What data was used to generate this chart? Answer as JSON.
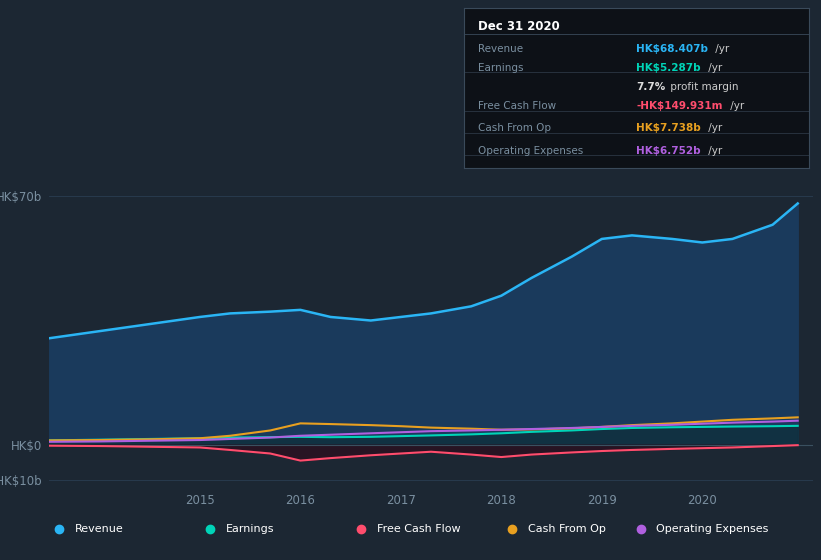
{
  "background_color": "#1c2733",
  "plot_bg_color": "#1c2733",
  "years": [
    2013.5,
    2014.0,
    2014.5,
    2015.0,
    2015.3,
    2015.7,
    2016.0,
    2016.3,
    2016.7,
    2017.0,
    2017.3,
    2017.7,
    2018.0,
    2018.3,
    2018.7,
    2019.0,
    2019.3,
    2019.7,
    2020.0,
    2020.3,
    2020.7,
    2020.95
  ],
  "revenue": [
    30,
    32,
    34,
    36,
    37,
    37.5,
    38,
    36,
    35,
    36,
    37,
    39,
    42,
    47,
    53,
    58,
    59,
    58,
    57,
    58,
    62,
    68
  ],
  "earnings": [
    1.2,
    1.4,
    1.6,
    1.8,
    2.0,
    2.1,
    2.2,
    2.1,
    2.2,
    2.4,
    2.6,
    2.9,
    3.2,
    3.6,
    4.0,
    4.4,
    4.7,
    4.9,
    5.0,
    5.1,
    5.2,
    5.3
  ],
  "free_cash_flow": [
    -0.3,
    -0.4,
    -0.6,
    -0.8,
    -1.5,
    -2.5,
    -4.5,
    -3.8,
    -3.0,
    -2.5,
    -2.0,
    -2.8,
    -3.5,
    -2.8,
    -2.2,
    -1.8,
    -1.5,
    -1.2,
    -1.0,
    -0.8,
    -0.4,
    -0.15
  ],
  "cash_from_op": [
    1.2,
    1.3,
    1.5,
    1.8,
    2.5,
    4.0,
    6.0,
    5.8,
    5.5,
    5.2,
    4.8,
    4.5,
    4.2,
    4.3,
    4.6,
    5.0,
    5.5,
    6.0,
    6.5,
    7.0,
    7.4,
    7.7
  ],
  "operating_expenses": [
    0.8,
    0.9,
    1.1,
    1.3,
    1.6,
    2.0,
    2.5,
    2.8,
    3.2,
    3.5,
    3.8,
    4.0,
    4.2,
    4.4,
    4.7,
    5.0,
    5.3,
    5.6,
    5.9,
    6.2,
    6.5,
    6.75
  ],
  "revenue_color": "#2ab5f5",
  "earnings_color": "#00d4b8",
  "free_cash_flow_color": "#ff4d6d",
  "cash_from_op_color": "#e8a020",
  "operating_expenses_color": "#b060e0",
  "ylim": [
    -12,
    78
  ],
  "xlabel_years": [
    2015,
    2016,
    2017,
    2018,
    2019,
    2020
  ],
  "grid_color": "#2a3d52",
  "text_color": "#7a8fa0",
  "box_bg": "#0d1117",
  "box_border": "#3a4a5a",
  "title_box_title": "Dec 31 2020",
  "title_box_rows": [
    {
      "label": "Revenue",
      "value": "HK$68.407b",
      "suffix": " /yr",
      "value_color": "#2ab5f5"
    },
    {
      "label": "Earnings",
      "value": "HK$5.287b",
      "suffix": " /yr",
      "value_color": "#00d4b8"
    },
    {
      "label": "",
      "value": "7.7%",
      "suffix": " profit margin",
      "value_color": "#dddddd"
    },
    {
      "label": "Free Cash Flow",
      "value": "-HK$149.931m",
      "suffix": " /yr",
      "value_color": "#ff4d6d"
    },
    {
      "label": "Cash From Op",
      "value": "HK$7.738b",
      "suffix": " /yr",
      "value_color": "#e8a020"
    },
    {
      "label": "Operating Expenses",
      "value": "HK$6.752b",
      "suffix": " /yr",
      "value_color": "#b060e0"
    }
  ],
  "legend": [
    {
      "label": "Revenue",
      "color": "#2ab5f5"
    },
    {
      "label": "Earnings",
      "color": "#00d4b8"
    },
    {
      "label": "Free Cash Flow",
      "color": "#ff4d6d"
    },
    {
      "label": "Cash From Op",
      "color": "#e8a020"
    },
    {
      "label": "Operating Expenses",
      "color": "#b060e0"
    }
  ]
}
